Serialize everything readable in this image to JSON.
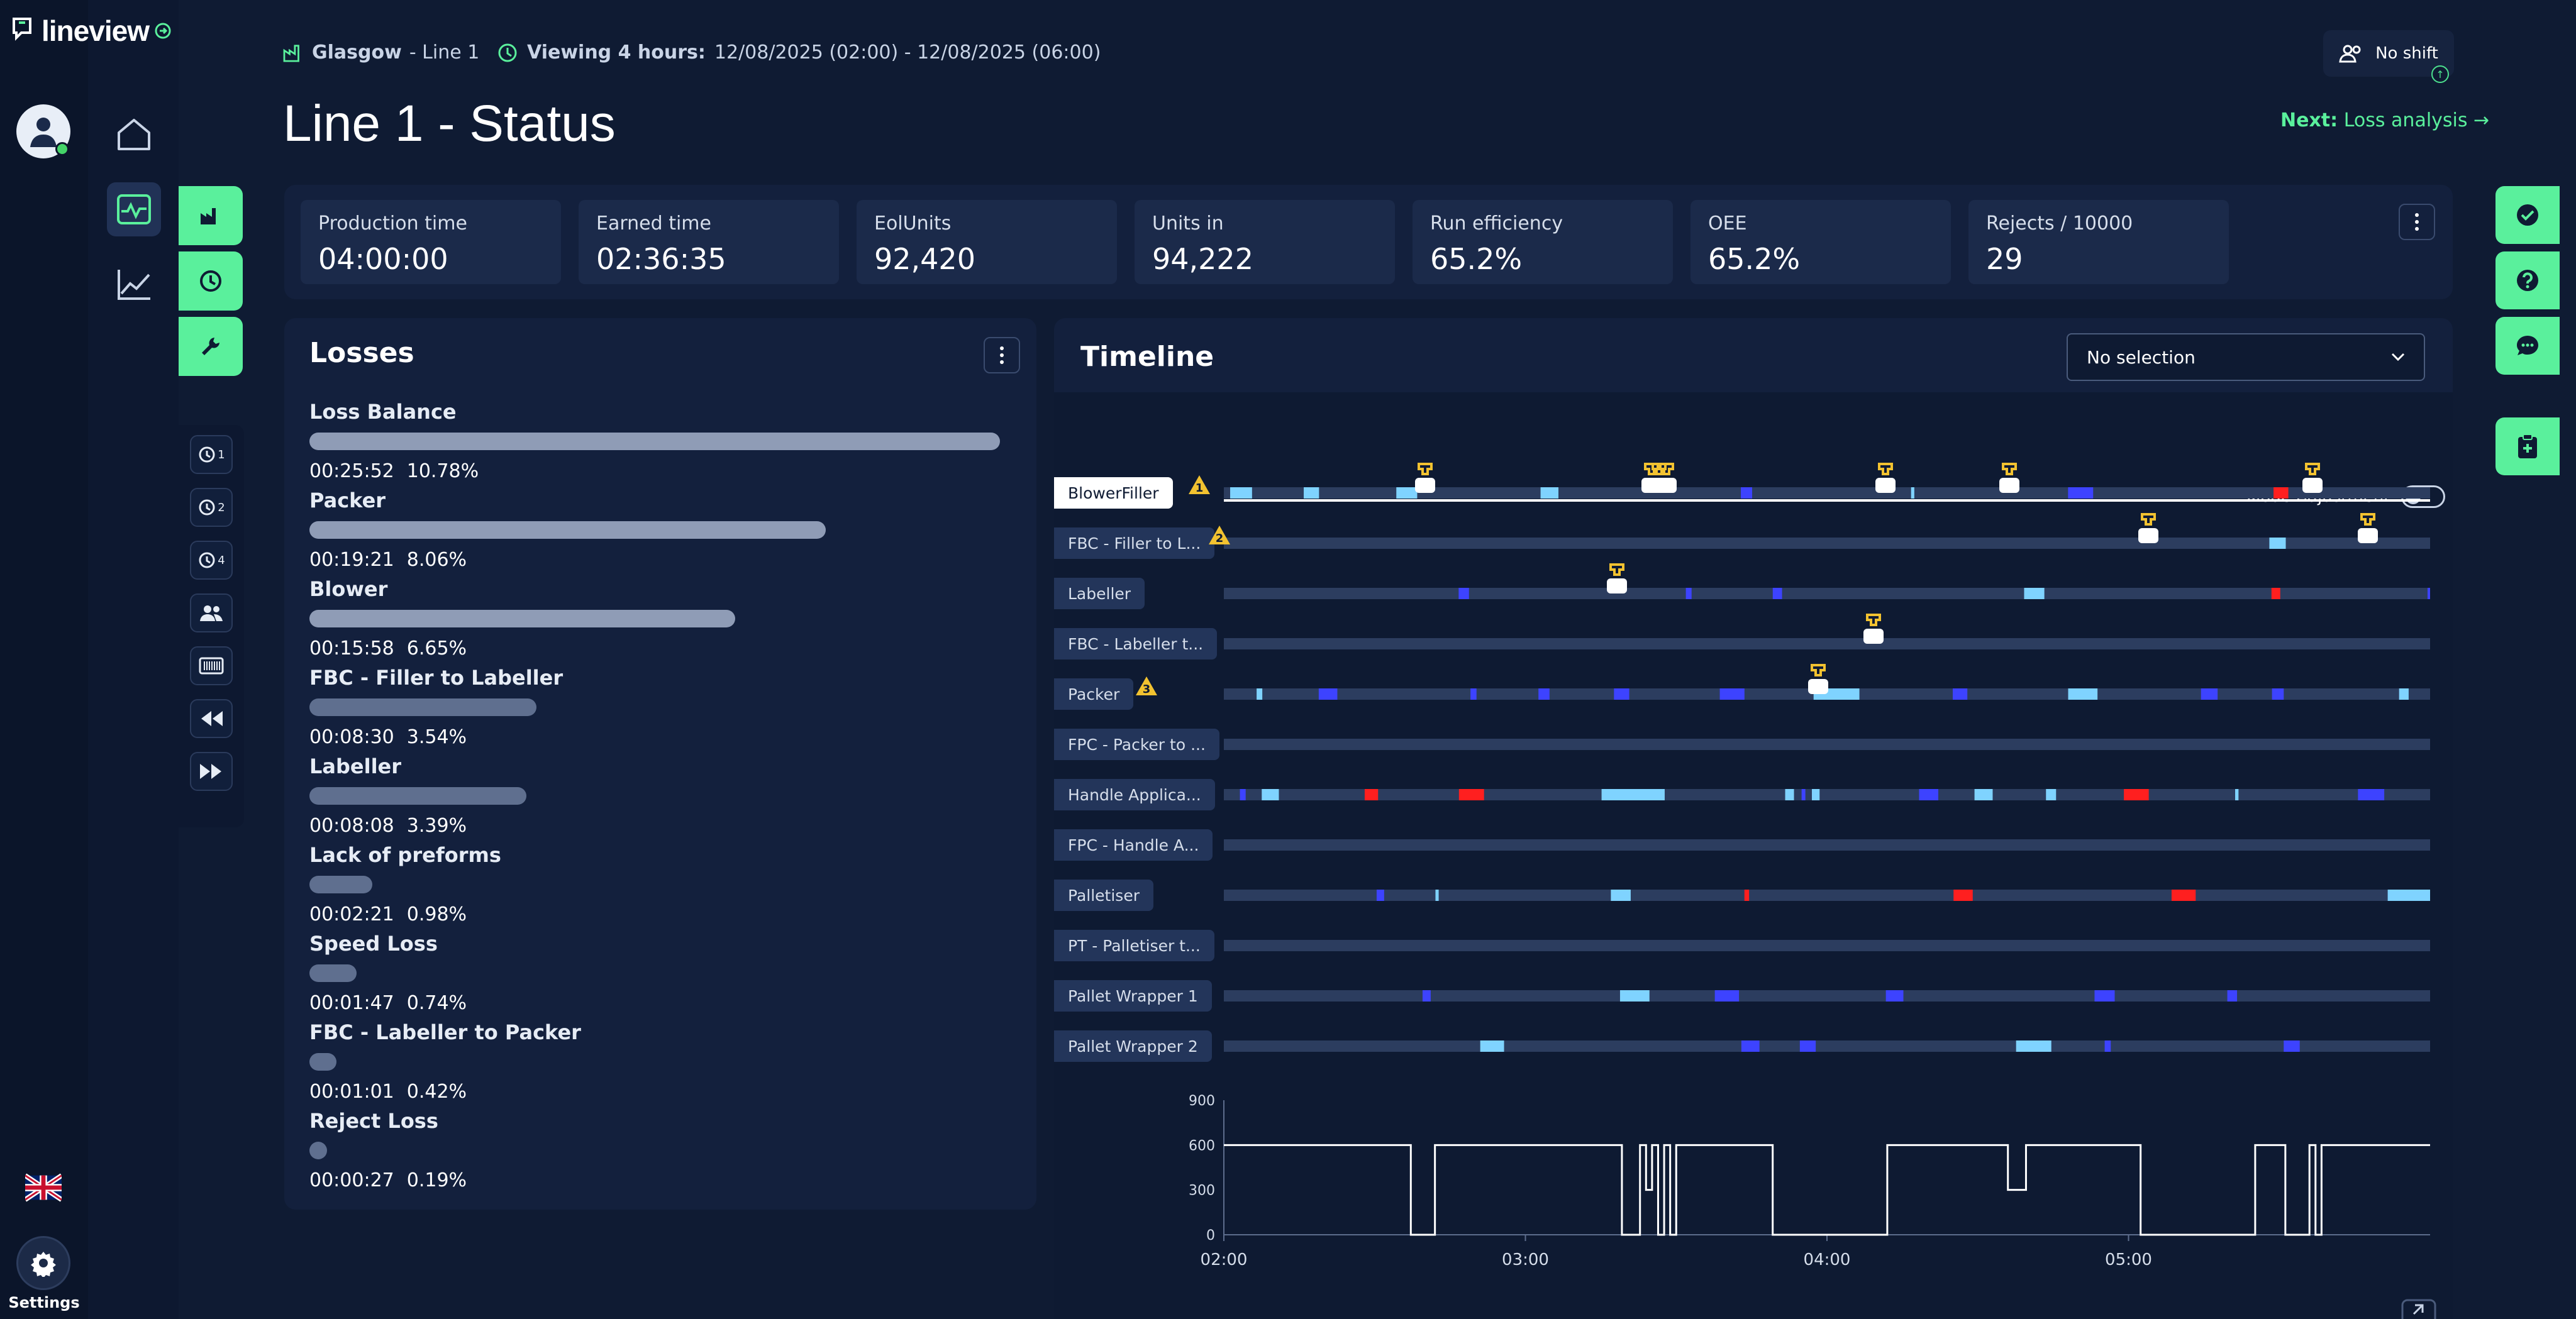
{
  "app": {
    "brand": "lineview",
    "settings_label": "Settings"
  },
  "header": {
    "site": "Glasgow",
    "line": "- Line 1",
    "viewing_label": "Viewing 4 hours:",
    "viewing_range": "12/08/2025 (02:00) - 12/08/2025 (06:00)",
    "page_title": "Line 1 - Status",
    "shift_label": "No shift",
    "next_label": "Next:",
    "next_target": "Loss analysis →"
  },
  "kpis": [
    {
      "label": "Production time",
      "value": "04:00:00"
    },
    {
      "label": "Earned time",
      "value": "02:36:35"
    },
    {
      "label": "EolUnits",
      "value": "92,420"
    },
    {
      "label": "Units in",
      "value": "94,222"
    },
    {
      "label": "Run efficiency",
      "value": "65.2%"
    },
    {
      "label": "OEE",
      "value": "65.2%"
    },
    {
      "label": "Rejects / 10000",
      "value": "29"
    }
  ],
  "losses": {
    "title": "Losses",
    "items": [
      {
        "name": "Loss Balance",
        "time": "00:25:52",
        "percent": "10.78%",
        "share": 10.78
      },
      {
        "name": "Packer",
        "time": "00:19:21",
        "percent": "8.06%",
        "share": 8.06
      },
      {
        "name": "Blower",
        "time": "00:15:58",
        "percent": "6.65%",
        "share": 6.65
      },
      {
        "name": "FBC - Filler to Labeller",
        "time": "00:08:30",
        "percent": "3.54%",
        "share": 3.54
      },
      {
        "name": "Labeller",
        "time": "00:08:08",
        "percent": "3.39%",
        "share": 3.39
      },
      {
        "name": "Lack of preforms",
        "time": "00:02:21",
        "percent": "0.98%",
        "share": 0.98
      },
      {
        "name": "Speed Loss",
        "time": "00:01:47",
        "percent": "0.74%",
        "share": 0.74
      },
      {
        "name": "FBC - Labeller to Packer",
        "time": "00:01:01",
        "percent": "0.42%",
        "share": 0.42
      },
      {
        "name": "Reject Loss",
        "time": "00:00:27",
        "percent": "0.19%",
        "share": 0.19
      }
    ]
  },
  "timeline": {
    "title": "Timeline",
    "select_value": "No selection",
    "mode_adjustment_label": "Mode Adjustment",
    "machines": [
      {
        "label": "BlowerFiller",
        "warning": "1",
        "selected": true
      },
      {
        "label": "FBC - Filler to L...",
        "warning": "2"
      },
      {
        "label": "Labeller"
      },
      {
        "label": "FBC - Labeller t..."
      },
      {
        "label": "Packer",
        "warning": "3"
      },
      {
        "label": "FPC - Packer to ..."
      },
      {
        "label": "Handle Applica..."
      },
      {
        "label": "FPC - Handle A..."
      },
      {
        "label": "Palletiser"
      },
      {
        "label": "PT - Palletiser t..."
      },
      {
        "label": "Pallet Wrapper 1"
      },
      {
        "label": "Pallet Wrapper 2"
      }
    ],
    "colors": {
      "base": "#2c3d5f",
      "red": "#ff1f1f",
      "blue": "#3d43ff",
      "cyan": "#7fd3ff",
      "white": "#ffffff",
      "marker": "#f2c230"
    }
  },
  "chart_data": {
    "type": "line",
    "y_ticks": [
      "900",
      "600",
      "300",
      "0"
    ],
    "ylim": [
      0,
      900
    ],
    "x_ticks": [
      "02:00",
      "03:00",
      "04:00",
      "05:00"
    ],
    "xlim_hours": [
      2,
      6
    ],
    "series": [
      {
        "x": [
          2.0,
          2.6,
          2.62,
          2.68,
          2.7,
          3.3,
          3.32,
          3.36,
          3.38,
          3.4,
          3.42,
          3.44,
          3.46,
          3.48,
          3.5,
          3.8,
          3.82,
          4.18,
          4.2,
          4.58,
          4.6,
          4.64,
          4.66,
          5.02,
          5.04,
          5.4,
          5.42,
          5.5,
          5.52,
          5.6,
          5.62,
          5.64,
          5.66,
          6.0
        ],
        "y": [
          600,
          600,
          0,
          0,
          600,
          600,
          0,
          0,
          600,
          300,
          600,
          0,
          600,
          0,
          600,
          600,
          0,
          0,
          600,
          600,
          300,
          300,
          600,
          600,
          0,
          0,
          600,
          600,
          0,
          600,
          0,
          600,
          600,
          600
        ]
      }
    ]
  }
}
